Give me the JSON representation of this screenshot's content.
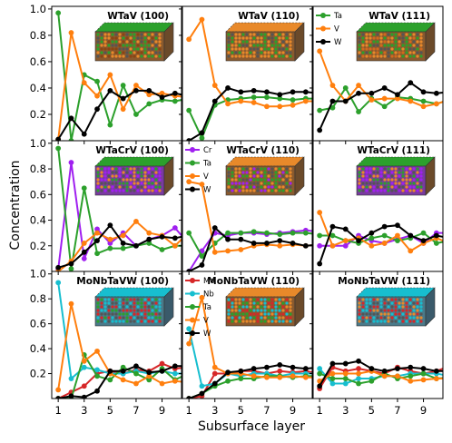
{
  "figure": {
    "xlabel": "Subsurface layer",
    "ylabel": "Concentration"
  },
  "colors": {
    "Ta": "#2ca02c",
    "V": "#ff7f0e",
    "W": "#000000",
    "Cr": "#a020f0",
    "Mo": "#d62728",
    "Nb": "#17becf"
  },
  "chart_data": [
    {
      "type": "line",
      "title": "WTaV (100)",
      "xlim": [
        0.5,
        10.5
      ],
      "ylim": [
        0,
        1.02
      ],
      "xticks": [
        1,
        3,
        5,
        7,
        9
      ],
      "yticks": [
        0.2,
        0.4,
        0.6,
        0.8,
        1.0
      ],
      "ytick_labels": [
        "0.2",
        "0.4",
        "0.6",
        "0.8",
        "1.0"
      ],
      "x": [
        1,
        2,
        3,
        4,
        5,
        6,
        7,
        8,
        9,
        10,
        11
      ],
      "series": [
        {
          "name": "Ta",
          "values": [
            0.97,
            0.0,
            0.5,
            0.45,
            0.12,
            0.42,
            0.2,
            0.28,
            0.31,
            0.3,
            0.32
          ]
        },
        {
          "name": "V",
          "values": [
            0.01,
            0.82,
            0.44,
            0.34,
            0.5,
            0.24,
            0.42,
            0.35,
            0.36,
            0.34,
            0.33
          ]
        },
        {
          "name": "W",
          "values": [
            0.01,
            0.17,
            0.05,
            0.24,
            0.38,
            0.32,
            0.38,
            0.38,
            0.33,
            0.36,
            0.34
          ]
        }
      ],
      "legend": null
    },
    {
      "type": "line",
      "title": "WTaV (110)",
      "xlim": [
        0.5,
        10.5
      ],
      "ylim": [
        0,
        1.02
      ],
      "xticks": [
        1,
        3,
        5,
        7,
        9
      ],
      "yticks": [
        0.2,
        0.4,
        0.6,
        0.8,
        1.0
      ],
      "ytick_labels": [],
      "x": [
        1,
        2,
        3,
        4,
        5,
        6,
        7,
        8,
        9,
        10,
        11
      ],
      "series": [
        {
          "name": "Ta",
          "values": [
            0.23,
            0.02,
            0.27,
            0.31,
            0.32,
            0.33,
            0.33,
            0.32,
            0.31,
            0.32,
            0.32
          ]
        },
        {
          "name": "V",
          "values": [
            0.77,
            0.92,
            0.42,
            0.28,
            0.3,
            0.29,
            0.26,
            0.26,
            0.27,
            0.3,
            0.3
          ]
        },
        {
          "name": "W",
          "values": [
            0.0,
            0.06,
            0.3,
            0.4,
            0.37,
            0.38,
            0.37,
            0.35,
            0.37,
            0.37,
            0.36
          ]
        }
      ],
      "legend": null
    },
    {
      "type": "line",
      "title": "WTaV (111)",
      "xlim": [
        0.5,
        10.5
      ],
      "ylim": [
        0,
        1.02
      ],
      "xticks": [
        1,
        3,
        5,
        7,
        9
      ],
      "yticks": [
        0.2,
        0.4,
        0.6,
        0.8,
        1.0
      ],
      "ytick_labels": [],
      "x": [
        1,
        2,
        3,
        4,
        5,
        6,
        7,
        8,
        9,
        10,
        11
      ],
      "series": [
        {
          "name": "Ta",
          "values": [
            0.23,
            0.25,
            0.4,
            0.22,
            0.32,
            0.26,
            0.33,
            0.32,
            0.3,
            0.28,
            0.31
          ]
        },
        {
          "name": "V",
          "values": [
            0.68,
            0.42,
            0.3,
            0.42,
            0.31,
            0.32,
            0.32,
            0.3,
            0.26,
            0.28,
            0.31
          ]
        },
        {
          "name": "W",
          "values": [
            0.08,
            0.3,
            0.3,
            0.36,
            0.36,
            0.4,
            0.35,
            0.44,
            0.37,
            0.36,
            0.37
          ]
        }
      ],
      "legend": [
        "Ta",
        "V",
        "W"
      ]
    },
    {
      "type": "line",
      "title": "WTaCrV (100)",
      "xlim": [
        0.5,
        10.5
      ],
      "ylim": [
        0,
        1.02
      ],
      "xticks": [
        1,
        3,
        5,
        7,
        9
      ],
      "yticks": [
        0.2,
        0.4,
        0.6,
        0.8,
        1.0
      ],
      "ytick_labels": [
        "0.2",
        "0.4",
        "0.6",
        "0.8",
        "1.0"
      ],
      "x": [
        1,
        2,
        3,
        4,
        5,
        6,
        7,
        8,
        9,
        10,
        11
      ],
      "series": [
        {
          "name": "Cr",
          "values": [
            0.02,
            0.85,
            0.1,
            0.33,
            0.22,
            0.3,
            0.2,
            0.25,
            0.28,
            0.34,
            0.22
          ]
        },
        {
          "name": "Ta",
          "values": [
            0.96,
            0.02,
            0.65,
            0.14,
            0.18,
            0.18,
            0.2,
            0.22,
            0.17,
            0.2,
            0.2
          ]
        },
        {
          "name": "V",
          "values": [
            0.0,
            0.08,
            0.22,
            0.3,
            0.25,
            0.28,
            0.39,
            0.3,
            0.28,
            0.2,
            0.3
          ]
        },
        {
          "name": "W",
          "values": [
            0.03,
            0.06,
            0.15,
            0.24,
            0.36,
            0.22,
            0.2,
            0.25,
            0.27,
            0.26,
            0.28
          ]
        }
      ],
      "legend": null
    },
    {
      "type": "line",
      "title": "WTaCrV (110)",
      "xlim": [
        0.5,
        10.5
      ],
      "ylim": [
        0,
        1.02
      ],
      "xticks": [
        1,
        3,
        5,
        7,
        9
      ],
      "yticks": [
        0.2,
        0.4,
        0.6,
        0.8,
        1.0
      ],
      "ytick_labels": [],
      "x": [
        1,
        2,
        3,
        4,
        5,
        6,
        7,
        8,
        9,
        10,
        11
      ],
      "series": [
        {
          "name": "Cr",
          "values": [
            0.0,
            0.16,
            0.3,
            0.28,
            0.3,
            0.3,
            0.29,
            0.3,
            0.31,
            0.32,
            0.31
          ]
        },
        {
          "name": "Ta",
          "values": [
            0.3,
            0.12,
            0.22,
            0.3,
            0.3,
            0.31,
            0.3,
            0.29,
            0.3,
            0.3,
            0.29
          ]
        },
        {
          "name": "V",
          "values": [
            0.7,
            0.68,
            0.15,
            0.16,
            0.17,
            0.2,
            0.21,
            0.2,
            0.21,
            0.2,
            0.21
          ]
        },
        {
          "name": "W",
          "values": [
            0.0,
            0.05,
            0.34,
            0.25,
            0.25,
            0.22,
            0.22,
            0.24,
            0.22,
            0.2,
            0.21
          ]
        }
      ],
      "legend": [
        "Cr",
        "Ta",
        "V",
        "W"
      ]
    },
    {
      "type": "line",
      "title": "WTaCrV (111)",
      "xlim": [
        0.5,
        10.5
      ],
      "ylim": [
        0,
        1.02
      ],
      "xticks": [
        1,
        3,
        5,
        7,
        9
      ],
      "yticks": [
        0.2,
        0.4,
        0.6,
        0.8,
        1.0
      ],
      "ytick_labels": [],
      "x": [
        1,
        2,
        3,
        4,
        5,
        6,
        7,
        8,
        9,
        10,
        11
      ],
      "series": [
        {
          "name": "Cr",
          "values": [
            0.2,
            0.2,
            0.2,
            0.28,
            0.24,
            0.22,
            0.25,
            0.28,
            0.22,
            0.3,
            0.3
          ]
        },
        {
          "name": "Ta",
          "values": [
            0.28,
            0.28,
            0.24,
            0.22,
            0.26,
            0.28,
            0.24,
            0.26,
            0.3,
            0.22,
            0.24
          ]
        },
        {
          "name": "V",
          "values": [
            0.46,
            0.2,
            0.24,
            0.26,
            0.2,
            0.22,
            0.28,
            0.16,
            0.22,
            0.26,
            0.22
          ]
        },
        {
          "name": "W",
          "values": [
            0.06,
            0.35,
            0.33,
            0.24,
            0.3,
            0.35,
            0.36,
            0.28,
            0.24,
            0.28,
            0.26
          ]
        }
      ],
      "legend": null
    },
    {
      "type": "line",
      "title": "MoNbTaVW (100)",
      "xlim": [
        0.5,
        10.5
      ],
      "ylim": [
        0,
        1.02
      ],
      "xticks": [
        1,
        3,
        5,
        7,
        9
      ],
      "yticks": [
        0.2,
        0.4,
        0.6,
        0.8,
        1.0
      ],
      "ytick_labels": [
        "0.2",
        "0.4",
        "0.6",
        "0.8",
        "1.0"
      ],
      "x": [
        1,
        2,
        3,
        4,
        5,
        6,
        7,
        8,
        9,
        10,
        11
      ],
      "series": [
        {
          "name": "Mo",
          "values": [
            0.0,
            0.05,
            0.1,
            0.2,
            0.22,
            0.2,
            0.23,
            0.22,
            0.28,
            0.24,
            0.25
          ]
        },
        {
          "name": "Nb",
          "values": [
            0.93,
            0.16,
            0.25,
            0.23,
            0.2,
            0.2,
            0.22,
            0.2,
            0.22,
            0.2,
            0.2
          ]
        },
        {
          "name": "Ta",
          "values": [
            0.0,
            0.0,
            0.35,
            0.18,
            0.15,
            0.25,
            0.2,
            0.15,
            0.24,
            0.15,
            0.2
          ]
        },
        {
          "name": "V",
          "values": [
            0.07,
            0.76,
            0.3,
            0.38,
            0.2,
            0.15,
            0.12,
            0.18,
            0.12,
            0.14,
            0.13
          ]
        },
        {
          "name": "W",
          "values": [
            0.0,
            0.02,
            0.01,
            0.06,
            0.22,
            0.22,
            0.26,
            0.21,
            0.22,
            0.26,
            0.26
          ]
        }
      ],
      "legend": null
    },
    {
      "type": "line",
      "title": "MoNbTaVW (110)",
      "xlim": [
        0.5,
        10.5
      ],
      "ylim": [
        0,
        1.02
      ],
      "xticks": [
        1,
        3,
        5,
        7,
        9
      ],
      "yticks": [
        0.2,
        0.4,
        0.6,
        0.8,
        1.0
      ],
      "ytick_labels": [],
      "x": [
        1,
        2,
        3,
        4,
        5,
        6,
        7,
        8,
        9,
        10,
        11
      ],
      "series": [
        {
          "name": "Mo",
          "values": [
            0.0,
            0.02,
            0.2,
            0.2,
            0.22,
            0.22,
            0.2,
            0.22,
            0.21,
            0.22,
            0.2
          ]
        },
        {
          "name": "Nb",
          "values": [
            0.56,
            0.1,
            0.12,
            0.2,
            0.18,
            0.2,
            0.2,
            0.18,
            0.2,
            0.2,
            0.2
          ]
        },
        {
          "name": "Ta",
          "values": [
            0.0,
            0.04,
            0.1,
            0.14,
            0.16,
            0.16,
            0.18,
            0.18,
            0.17,
            0.18,
            0.18
          ]
        },
        {
          "name": "V",
          "values": [
            0.44,
            0.81,
            0.25,
            0.2,
            0.2,
            0.18,
            0.17,
            0.17,
            0.18,
            0.17,
            0.17
          ]
        },
        {
          "name": "W",
          "values": [
            0.0,
            0.04,
            0.12,
            0.21,
            0.22,
            0.24,
            0.25,
            0.27,
            0.25,
            0.24,
            0.25
          ]
        }
      ],
      "legend": [
        "Mo",
        "Nb",
        "Ta",
        "V",
        "W"
      ]
    },
    {
      "type": "line",
      "title": "MoNbTaVW (111)",
      "xlim": [
        0.5,
        10.5
      ],
      "ylim": [
        0,
        1.02
      ],
      "xticks": [
        1,
        3,
        5,
        7,
        9
      ],
      "yticks": [
        0.2,
        0.4,
        0.6,
        0.8,
        1.0
      ],
      "ytick_labels": [],
      "x": [
        1,
        2,
        3,
        4,
        5,
        6,
        7,
        8,
        9,
        10,
        11
      ],
      "series": [
        {
          "name": "Mo",
          "values": [
            0.08,
            0.25,
            0.22,
            0.24,
            0.22,
            0.2,
            0.25,
            0.22,
            0.2,
            0.22,
            0.26
          ]
        },
        {
          "name": "Nb",
          "values": [
            0.24,
            0.12,
            0.12,
            0.16,
            0.16,
            0.18,
            0.18,
            0.2,
            0.2,
            0.2,
            0.18
          ]
        },
        {
          "name": "Ta",
          "values": [
            0.2,
            0.16,
            0.16,
            0.12,
            0.14,
            0.2,
            0.16,
            0.18,
            0.2,
            0.16,
            0.17
          ]
        },
        {
          "name": "V",
          "values": [
            0.14,
            0.2,
            0.2,
            0.2,
            0.22,
            0.18,
            0.18,
            0.14,
            0.15,
            0.16,
            0.16
          ]
        },
        {
          "name": "W",
          "values": [
            0.1,
            0.28,
            0.28,
            0.3,
            0.24,
            0.22,
            0.24,
            0.25,
            0.24,
            0.22,
            0.22
          ]
        }
      ],
      "legend": null
    }
  ]
}
